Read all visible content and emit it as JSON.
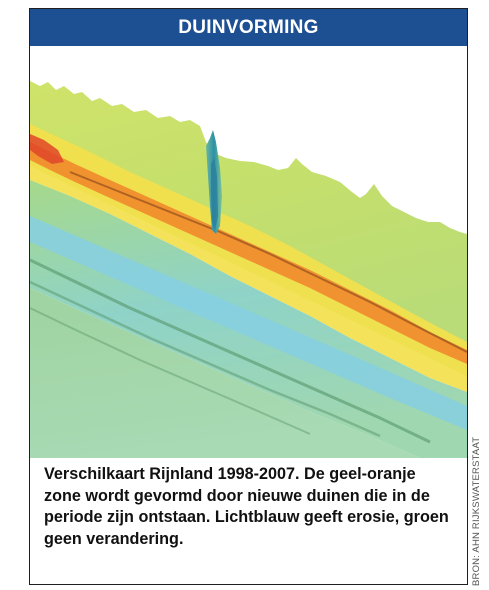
{
  "header": {
    "title": "DUINVORMING"
  },
  "caption": {
    "text": "Verschilkaart Rijnland 1998-2007. De geel-oranje zone wordt gevormd door nieuwe duinen die in de periode zijn ontstaan. Lichtblauw geeft erosie, groen geen verandering."
  },
  "source": {
    "credit": "BRON: AHN RIJKSWATERSTAAT"
  },
  "colors": {
    "header_bg": "#1d4f93",
    "erosion": "#8fd3e6",
    "no_change": "#b9dc7a",
    "new_dunes_yellow": "#f5e24a",
    "new_dunes_orange": "#f08a2a"
  }
}
